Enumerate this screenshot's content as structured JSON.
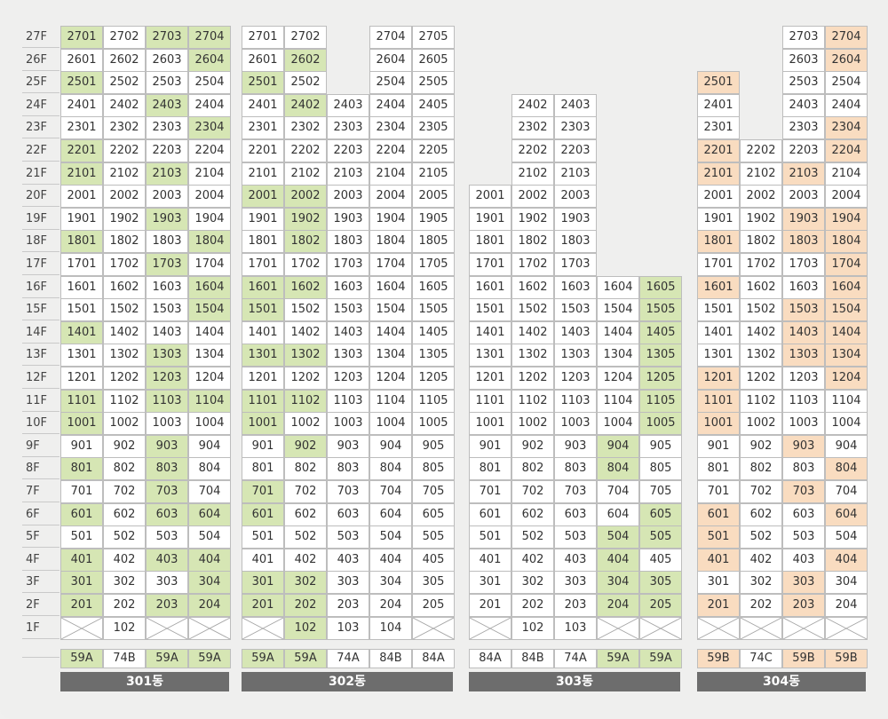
{
  "floors": [
    "27F",
    "26F",
    "25F",
    "24F",
    "23F",
    "22F",
    "21F",
    "20F",
    "19F",
    "18F",
    "17F",
    "16F",
    "15F",
    "14F",
    "13F",
    "12F",
    "11F",
    "10F",
    "9F",
    "8F",
    "7F",
    "6F",
    "5F",
    "4F",
    "3F",
    "2F",
    "1F"
  ],
  "buildings": [
    {
      "name": "301동",
      "accent": "g",
      "columns": [
        {
          "suffix": "01",
          "type": "59A",
          "type_hl": true,
          "top": 27,
          "hl": [
            27,
            25,
            22,
            21,
            18,
            14,
            11,
            10,
            8,
            6,
            4,
            3,
            2
          ],
          "first_floor": "x"
        },
        {
          "suffix": "02",
          "type": "74B",
          "type_hl": false,
          "top": 27,
          "hl": [],
          "first_floor": "102"
        },
        {
          "suffix": "03",
          "type": "59A",
          "type_hl": true,
          "top": 27,
          "hl": [
            27,
            24,
            21,
            19,
            17,
            13,
            12,
            11,
            9,
            8,
            7,
            6,
            4,
            2
          ],
          "first_floor": "x"
        },
        {
          "suffix": "04",
          "type": "59A",
          "type_hl": true,
          "top": 27,
          "hl": [
            27,
            26,
            23,
            18,
            16,
            15,
            11,
            6,
            4,
            3,
            2
          ],
          "first_floor": "x"
        }
      ]
    },
    {
      "name": "302동",
      "accent": "g",
      "columns": [
        {
          "suffix": "01",
          "type": "59A",
          "type_hl": true,
          "top": 27,
          "hl": [
            25,
            20,
            16,
            15,
            13,
            11,
            10,
            7,
            6,
            3,
            2
          ],
          "first_floor": "x"
        },
        {
          "suffix": "02",
          "type": "59A",
          "type_hl": true,
          "top": 27,
          "hl": [
            26,
            24,
            20,
            19,
            18,
            16,
            13,
            11,
            9,
            3,
            2
          ],
          "first_floor": "102",
          "first_floor_hl": true
        },
        {
          "suffix": "03",
          "type": "74A",
          "type_hl": false,
          "top": 24,
          "hl": [],
          "first_floor": "103"
        },
        {
          "suffix": "04",
          "type": "84B",
          "type_hl": false,
          "top": 27,
          "hl": [],
          "first_floor": "104"
        },
        {
          "suffix": "05",
          "type": "84A",
          "type_hl": false,
          "top": 27,
          "hl": [],
          "first_floor": "x"
        }
      ]
    },
    {
      "name": "303동",
      "accent": "g",
      "columns": [
        {
          "suffix": "01",
          "type": "84A",
          "type_hl": false,
          "top": 20,
          "hl": [],
          "first_floor": "x"
        },
        {
          "suffix": "02",
          "type": "84B",
          "type_hl": false,
          "top": 24,
          "hl": [],
          "first_floor": "102"
        },
        {
          "suffix": "03",
          "type": "74A",
          "type_hl": false,
          "top": 24,
          "hl": [],
          "first_floor": "103"
        },
        {
          "suffix": "04",
          "type": "59A",
          "type_hl": true,
          "top": 16,
          "hl": [
            9,
            8,
            5,
            4,
            3,
            2
          ],
          "first_floor": "x"
        },
        {
          "suffix": "05",
          "type": "59A",
          "type_hl": true,
          "top": 16,
          "hl": [
            16,
            15,
            14,
            13,
            12,
            11,
            10,
            6,
            5,
            3,
            2
          ],
          "first_floor": "x"
        }
      ]
    },
    {
      "name": "304동",
      "accent": "o",
      "columns": [
        {
          "suffix": "01",
          "type": "59B",
          "type_hl": true,
          "top": 25,
          "hl": [
            25,
            22,
            21,
            18,
            16,
            12,
            11,
            10,
            6,
            5,
            4,
            2
          ],
          "first_floor": "x"
        },
        {
          "suffix": "02",
          "type": "74C",
          "type_hl": false,
          "top": 22,
          "hl": [],
          "first_floor": "x"
        },
        {
          "suffix": "03",
          "type": "59B",
          "type_hl": true,
          "top": 27,
          "hl": [
            21,
            19,
            18,
            15,
            14,
            13,
            9,
            7,
            3,
            2
          ],
          "first_floor": "x"
        },
        {
          "suffix": "04",
          "type": "59B",
          "type_hl": true,
          "top": 27,
          "hl": [
            27,
            26,
            23,
            22,
            19,
            18,
            17,
            16,
            15,
            14,
            13,
            12,
            8,
            6,
            4
          ],
          "first_floor": "x"
        }
      ]
    }
  ]
}
